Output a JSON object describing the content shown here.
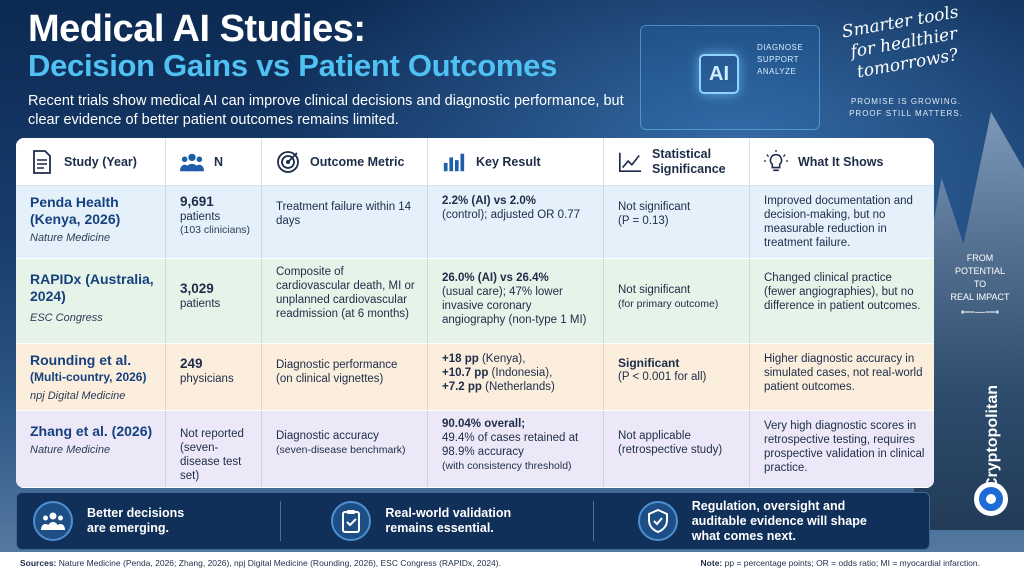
{
  "header": {
    "title_line1": "Medical AI Studies:",
    "title_line2": "Decision Gains vs Patient Outcomes",
    "subtitle": "Recent trials show medical AI can improve clinical decisions and diagnostic performance, but clear evidence of better patient outcomes remains limited.",
    "tagline": "Smarter tools for healthier tomorrows?",
    "promise_line1": "PROMISE IS GROWING.",
    "promise_line2": "PROOF STILL MATTERS."
  },
  "hologram": {
    "ai_label": "AI",
    "text_line1": "DIAGNOSE",
    "text_line2": "SUPPORT",
    "text_line3": "ANALYZE"
  },
  "side_note": {
    "line1": "FROM",
    "line2": "POTENTIAL",
    "line3": "TO",
    "line4": "REAL IMPACT"
  },
  "brand": {
    "name": "Cryptopolitan"
  },
  "table": {
    "columns": [
      {
        "label": "Study (Year)",
        "icon": "document-icon"
      },
      {
        "label": "N",
        "icon": "people-icon"
      },
      {
        "label": "Outcome Metric",
        "icon": "target-icon"
      },
      {
        "label": "Key Result",
        "icon": "bar-chart-icon"
      },
      {
        "label": "Statistical Significance",
        "icon": "line-chart-icon"
      },
      {
        "label": "What It Shows",
        "icon": "lightbulb-icon"
      }
    ],
    "rows": [
      {
        "study_name": "Penda Health (Kenya, 2026)",
        "study_source": "Nature Medicine",
        "n_value": "9,691",
        "n_unit": "patients",
        "n_sub": "(103 clinicians)",
        "metric": "Treatment failure within 14 days",
        "metric_sub": "",
        "result_bold": "2.2% (AI) vs 2.0%",
        "result_rest": "(control); adjusted OR 0.77",
        "result_sub": "",
        "significance": "Not significant",
        "significance_sub": "(P = 0.13)",
        "shows": "Improved documentation and decision-making, but no measurable reduction in treatment failure."
      },
      {
        "study_name": "RAPIDx (Australia, 2024)",
        "study_source": "ESC Congress",
        "n_value": "3,029",
        "n_unit": "patients",
        "n_sub": "",
        "metric": "Composite of cardiovascular death, MI or unplanned cardiovascular readmission (at 6 months)",
        "metric_sub": "",
        "result_bold": "26.0% (AI) vs 26.4%",
        "result_rest": "(usual care); 47% lower invasive coronary angiography (non-type 1 MI)",
        "result_sub": "",
        "significance": "Not significant",
        "significance_sub": "(for primary outcome)",
        "shows": "Changed clinical practice (fewer angiographies), but no difference in patient outcomes."
      },
      {
        "study_name": "Rounding et al.",
        "study_name_2": "(Multi-country, 2026)",
        "study_source": "npj Digital Medicine",
        "n_value": "249",
        "n_unit": "physicians",
        "n_sub": "",
        "metric": "Diagnostic performance",
        "metric_sub": "(on clinical vignettes)",
        "result_lines": [
          {
            "bold": "+18 pp",
            "rest": " (Kenya),"
          },
          {
            "bold": "+10.7 pp",
            "rest": " (Indonesia),"
          },
          {
            "bold": "+7.2 pp",
            "rest": " (Netherlands)"
          }
        ],
        "significance": "Significant",
        "significance_sub": "(P < 0.001 for all)",
        "shows": "Higher diagnostic accuracy in simulated cases, not real-world patient outcomes."
      },
      {
        "study_name": "Zhang et al. (2026)",
        "study_source": "Nature Medicine",
        "n_value": "Not reported",
        "n_unit": "(seven-disease test set)",
        "n_sub": "",
        "metric": "Diagnostic accuracy",
        "metric_sub": "(seven-disease benchmark)",
        "result_bold": "90.04% overall;",
        "result_rest": "49.4% of cases retained at 98.9% accuracy",
        "result_sub": "(with consistency threshold)",
        "significance": "Not applicable",
        "significance_sub": "(retrospective study)",
        "shows": "Very high diagnostic scores in retrospective testing, requires prospective validation in clinical practice."
      }
    ]
  },
  "takeaways": [
    {
      "icon": "group-icon",
      "text_line1": "Better decisions",
      "text_line2": "are emerging."
    },
    {
      "icon": "clipboard-check-icon",
      "text_line1": "Real-world validation",
      "text_line2": "remains essential."
    },
    {
      "icon": "shield-check-icon",
      "text_line1": "Regulation, oversight and",
      "text_line2": "auditable evidence will shape",
      "text_line3": "what comes next."
    }
  ],
  "footer": {
    "sources_label": "Sources:",
    "sources_text": " Nature Medicine (Penda, 2026; Zhang, 2026), npj Digital Medicine (Rounding, 2026), ESC Congress (RAPIDx, 2024).",
    "note_label": "Note:",
    "note_text": " pp = percentage points; OR = odds ratio; MI = myocardial infarction."
  }
}
